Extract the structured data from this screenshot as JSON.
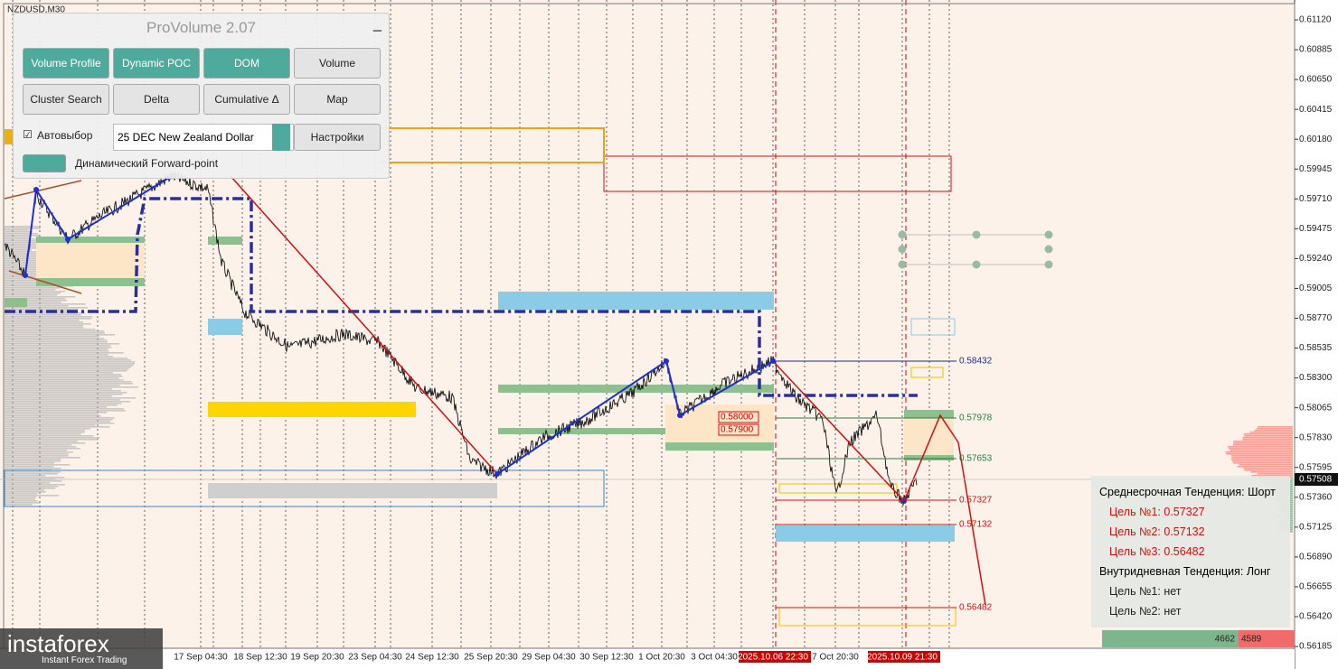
{
  "symbol": "NZDUSD,M30",
  "panel": {
    "title": "ProVolume 2.07",
    "buttons": [
      "Volume Profile",
      "Dynamic POC",
      "DOM",
      "Volume",
      "Cluster Search",
      "Delta",
      "Cumulative Δ",
      "Map"
    ],
    "auto_label": "Автовыбор",
    "instrument": "25 DEC New Zealand Dollar",
    "settings": "Настройки",
    "forward_point": "Динамический Forward-point"
  },
  "price_axis": {
    "labels": [
      "0.61120",
      "0.60885",
      "0.60650",
      "0.60415",
      "0.60180",
      "0.59945",
      "0.59710",
      "0.59475",
      "0.59240",
      "0.59005",
      "0.58770",
      "0.58535",
      "0.58300",
      "0.58065",
      "0.57830",
      "0.57595",
      "0.57360",
      "0.57125",
      "0.56890",
      "0.56655",
      "0.56420",
      "0.56185"
    ],
    "current": "0.57508"
  },
  "time_axis": {
    "labels": [
      "17 Sep 04:30",
      "18 Sep 12:30",
      "19 Sep 20:30",
      "23 Sep 04:30",
      "24 Sep 12:30",
      "25 Sep 20:30",
      "29 Sep 04:30",
      "30 Sep 12:30",
      "1 Oct 20:30",
      "3 Oct 04:30",
      "2025.10.06 22:30",
      "7 Oct 20:30",
      "2025.10.09 21:30"
    ]
  },
  "levels": [
    "0.58432",
    "0.57978",
    "0.57653",
    "0.57327",
    "0.57132",
    "0.56482"
  ],
  "zone_labels": [
    "0.58000",
    "0.57900"
  ],
  "trend_box": [
    "Среднесрочная Тенденция: Шорт",
    "Цель №1: 0.57327",
    "Цель №2: 0.57132",
    "Цель №3: 0.56482",
    "Внутридневная Тенденция: Лонг",
    "Цель №1: нет",
    "Цель №2: нет"
  ],
  "volume_counts": [
    "4662",
    "4589"
  ],
  "watermark": {
    "brand": "instaforex",
    "tagline": "Instant Forex Trading"
  }
}
